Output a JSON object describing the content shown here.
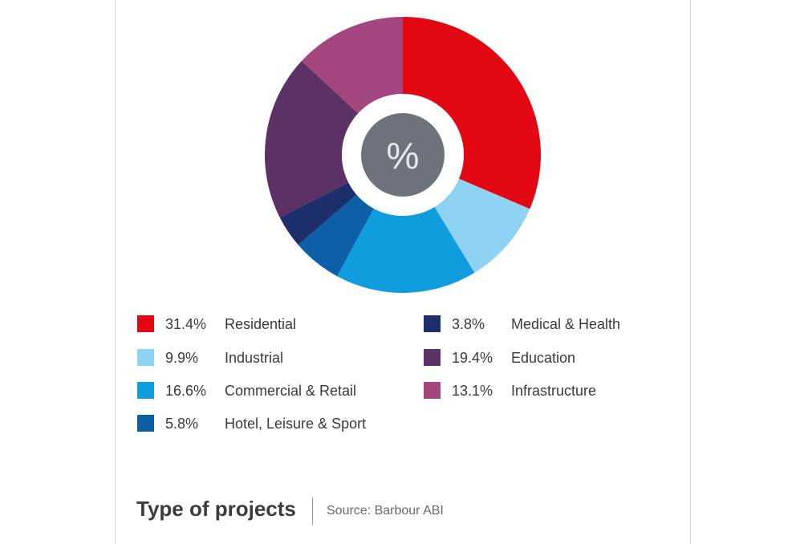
{
  "chart_data": {
    "type": "pie",
    "title": "Type of projects",
    "source": "Source: Barbour ABI",
    "center_label": "%",
    "slices": [
      {
        "label": "Residential",
        "value": 31.4,
        "value_label": "31.4%",
        "color": "#e30613"
      },
      {
        "label": "Industrial",
        "value": 9.9,
        "value_label": "9.9%",
        "color": "#8fd3f4"
      },
      {
        "label": "Commercial & Retail",
        "value": 16.6,
        "value_label": "16.6%",
        "color": "#0f9de0"
      },
      {
        "label": "Hotel, Leisure & Sport",
        "value": 5.8,
        "value_label": "5.8%",
        "color": "#0d5fa8"
      },
      {
        "label": "Medical & Health",
        "value": 3.8,
        "value_label": "3.8%",
        "color": "#1c2f6b"
      },
      {
        "label": "Education",
        "value": 19.4,
        "value_label": "19.4%",
        "color": "#5b3166"
      },
      {
        "label": "Infrastructure",
        "value": 13.1,
        "value_label": "13.1%",
        "color": "#a3457f"
      }
    ],
    "legend_placement": "bottom",
    "center_color": "#6e737b"
  }
}
